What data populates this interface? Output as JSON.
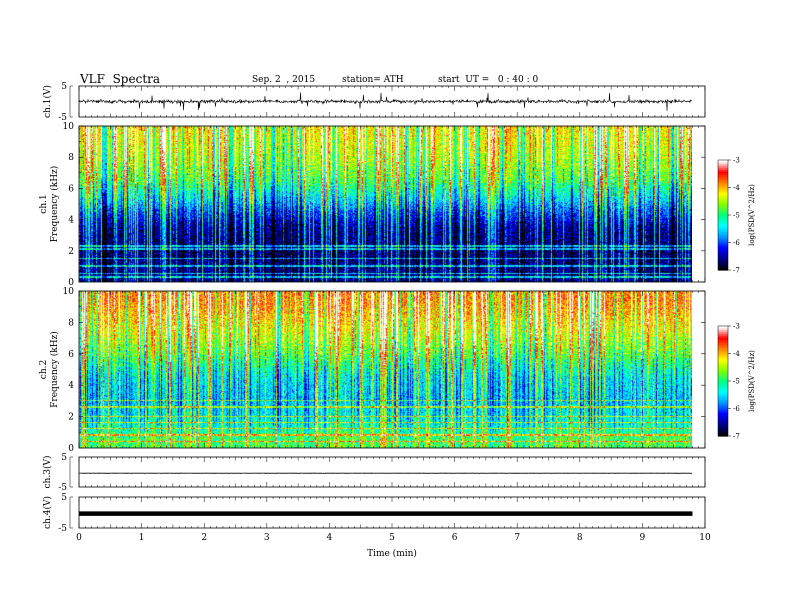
{
  "header": {
    "title": "VLF  Spectra",
    "date": "Sep. 2  , 2015",
    "station": "station= ATH",
    "start": "start  UT =   0 : 40 : 0"
  },
  "colors": {
    "colormap": [
      "#000000",
      "#00008a",
      "#0000ff",
      "#0096ff",
      "#00ffff",
      "#00ff80",
      "#80ff00",
      "#ffff00",
      "#ff8000",
      "#ff0000",
      "#ffffff"
    ],
    "trace": "#000000",
    "axis": "#000000"
  },
  "chart_data": [
    {
      "type": "line",
      "name": "ch1-waveform",
      "ylabel": "ch.1(V)",
      "ylim": [
        -5,
        5
      ],
      "yticks": [
        "5",
        "-5"
      ],
      "x_range_min": [
        0,
        9.8
      ],
      "signal": "noisy trace centred near 0 V, typical amplitude about ±1 V with frequent impulsive spikes reaching ±3 V"
    },
    {
      "type": "heatmap",
      "name": "ch1-spectrogram",
      "ylabel": "Frequency  (kHz)",
      "channel_label": "ch.1",
      "ylim": [
        0,
        10
      ],
      "yticks": [
        "0",
        "2",
        "4",
        "6",
        "8",
        "10"
      ],
      "x_range_min": [
        0,
        9.8
      ],
      "colorbar": {
        "label": "log(PSD(V^2/Hz)",
        "range": [
          -7,
          -3
        ],
        "ticks": [
          "-3",
          "-4",
          "-5",
          "-6",
          "-7"
        ]
      },
      "level_profile": [
        {
          "freq_khz": 0.5,
          "log_psd": -6.6
        },
        {
          "freq_khz": 2,
          "log_psd": -6.7
        },
        {
          "freq_khz": 3.5,
          "log_psd": -6.5
        },
        {
          "freq_khz": 4.5,
          "log_psd": -6.0
        },
        {
          "freq_khz": 5.5,
          "log_psd": -5.4
        },
        {
          "freq_khz": 6.5,
          "log_psd": -4.8
        },
        {
          "freq_khz": 8,
          "log_psd": -4.4
        },
        {
          "freq_khz": 10,
          "log_psd": -4.1
        }
      ],
      "tonal_lines_khz": [
        0.3,
        0.5,
        1.0,
        1.5,
        2.1,
        2.3
      ]
    },
    {
      "type": "heatmap",
      "name": "ch2-spectrogram",
      "ylabel": "Frequency  (kHz)",
      "channel_label": "ch.2",
      "ylim": [
        0,
        10
      ],
      "yticks": [
        "0",
        "2",
        "4",
        "6",
        "8",
        "10"
      ],
      "x_range_min": [
        0,
        9.8
      ],
      "colorbar": {
        "label": "log(PSD(V^2/Hz)",
        "range": [
          -7,
          -3
        ],
        "ticks": [
          "-3",
          "-4",
          "-5",
          "-6",
          "-7"
        ]
      },
      "level_profile": [
        {
          "freq_khz": 0.5,
          "log_psd": -4.8
        },
        {
          "freq_khz": 1.5,
          "log_psd": -5.3
        },
        {
          "freq_khz": 3,
          "log_psd": -5.6
        },
        {
          "freq_khz": 4.5,
          "log_psd": -5.4
        },
        {
          "freq_khz": 6,
          "log_psd": -4.7
        },
        {
          "freq_khz": 7.5,
          "log_psd": -4.2
        },
        {
          "freq_khz": 9,
          "log_psd": -3.8
        },
        {
          "freq_khz": 10,
          "log_psd": -3.7
        }
      ],
      "tonal_lines_khz": [
        0.4,
        0.8,
        1.2,
        1.6,
        2.0,
        2.6,
        3.0
      ]
    },
    {
      "type": "line",
      "name": "ch3-waveform",
      "ylabel": "ch.3(V)",
      "ylim": [
        -5,
        5
      ],
      "yticks": [
        "5",
        "-5"
      ],
      "x_range_min": [
        0,
        9.8
      ],
      "signal": "nearly flat trace just below 0 V"
    },
    {
      "type": "line",
      "name": "ch4-waveform",
      "ylabel": "ch.4(V)",
      "ylim": [
        -5,
        5
      ],
      "yticks": [
        "5",
        "-5"
      ],
      "x_range_min": [
        0,
        9.8
      ],
      "signal": "thick saturated flat band just below 0 V"
    }
  ],
  "time_axis": {
    "label": "Time  (min)",
    "range": [
      0,
      10
    ],
    "ticks": [
      "0",
      "1",
      "2",
      "3",
      "4",
      "5",
      "6",
      "7",
      "8",
      "9",
      "10"
    ]
  }
}
